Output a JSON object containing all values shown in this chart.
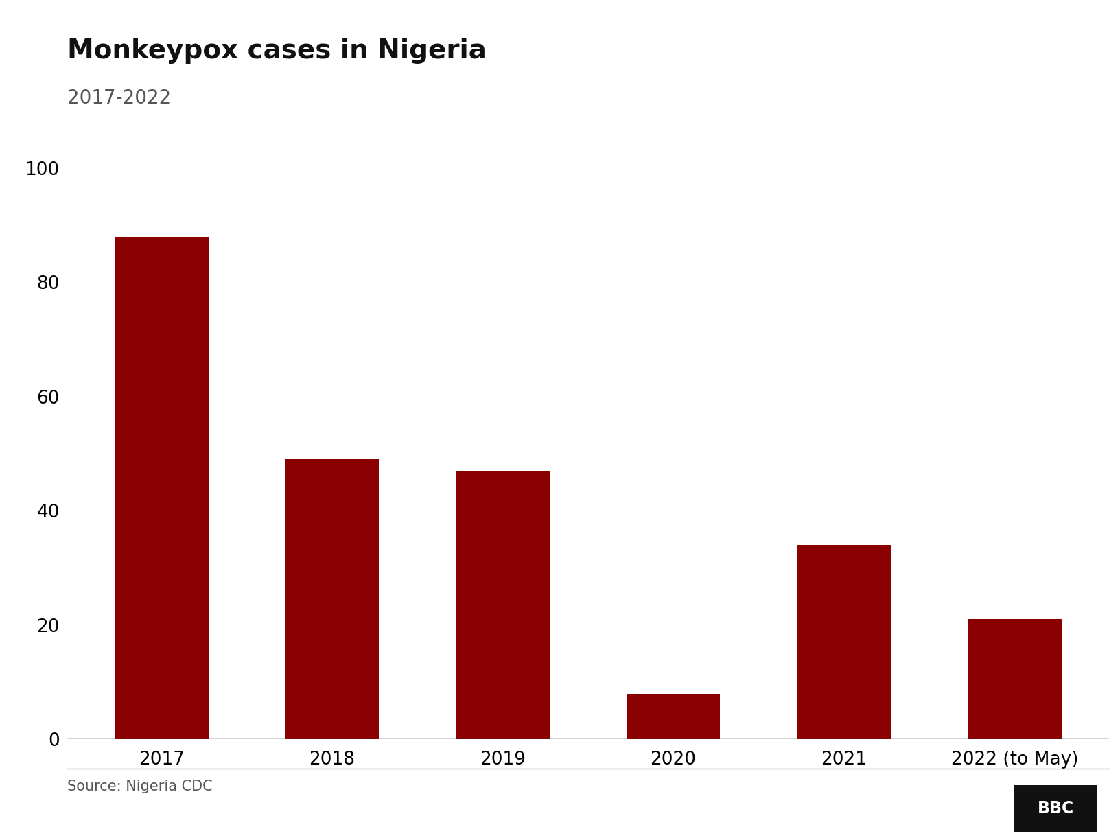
{
  "title": "Monkeypox cases in Nigeria",
  "subtitle": "2017-2022",
  "categories": [
    "2017",
    "2018",
    "2019",
    "2020",
    "2021",
    "2022 (to May)"
  ],
  "values": [
    88,
    49,
    47,
    8,
    34,
    21
  ],
  "bar_color": "#8B0000",
  "background_color": "#ffffff",
  "ylim": [
    0,
    100
  ],
  "yticks": [
    0,
    20,
    40,
    60,
    80,
    100
  ],
  "source_text": "Source: Nigeria CDC",
  "bbc_text": "BBC",
  "title_fontsize": 28,
  "subtitle_fontsize": 20,
  "tick_fontsize": 19,
  "source_fontsize": 15,
  "bar_width": 0.55
}
